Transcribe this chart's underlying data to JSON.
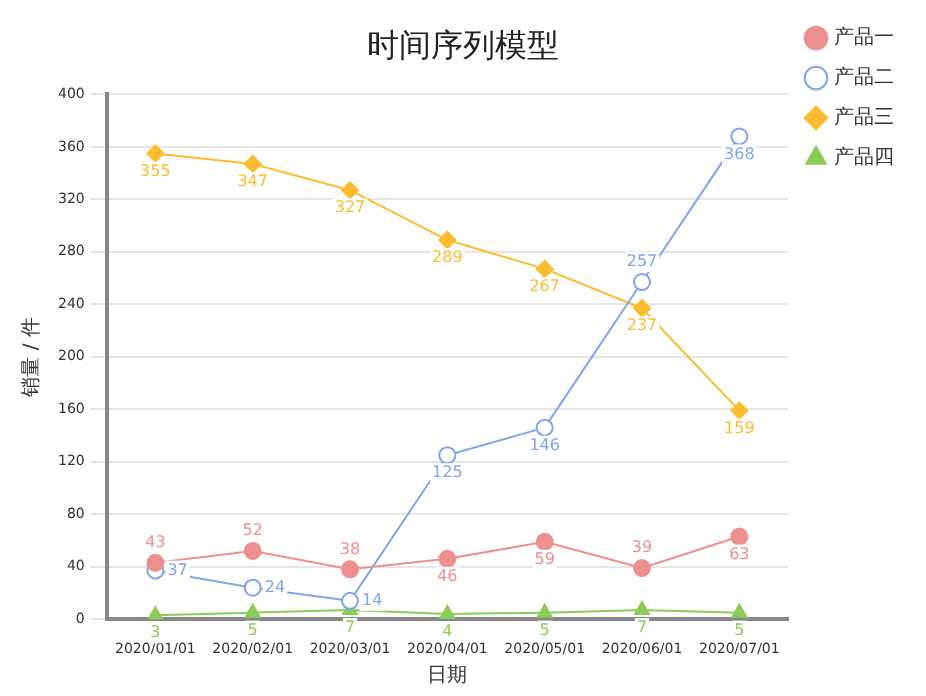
{
  "chart_data": {
    "type": "line",
    "title": "时间序列模型",
    "xlabel": "日期",
    "ylabel": "销量 / 件",
    "categories": [
      "2020/01/01",
      "2020/02/01",
      "2020/03/01",
      "2020/04/01",
      "2020/05/01",
      "2020/06/01",
      "2020/07/01"
    ],
    "series": [
      {
        "name": "产品一",
        "color": "#ee8f8f",
        "marker": "circle",
        "values": [
          43,
          52,
          38,
          46,
          59,
          39,
          63
        ]
      },
      {
        "name": "产品二",
        "color": "#7fa6ea",
        "marker": "circle",
        "values": [
          37,
          24,
          14,
          125,
          146,
          257,
          368
        ]
      },
      {
        "name": "产品三",
        "color": "#fbbd2e",
        "marker": "diamond",
        "values": [
          355,
          347,
          327,
          289,
          267,
          237,
          159
        ]
      },
      {
        "name": "产品四",
        "color": "#8ccd5a",
        "marker": "triangle",
        "values": [
          3,
          5,
          7,
          4,
          5,
          7,
          5
        ]
      }
    ],
    "ylim": [
      0,
      400
    ],
    "yticks": [
      0,
      40,
      80,
      120,
      160,
      200,
      240,
      280,
      320,
      360,
      400
    ],
    "grid": "y",
    "legend": "top right",
    "data_labels": true
  }
}
